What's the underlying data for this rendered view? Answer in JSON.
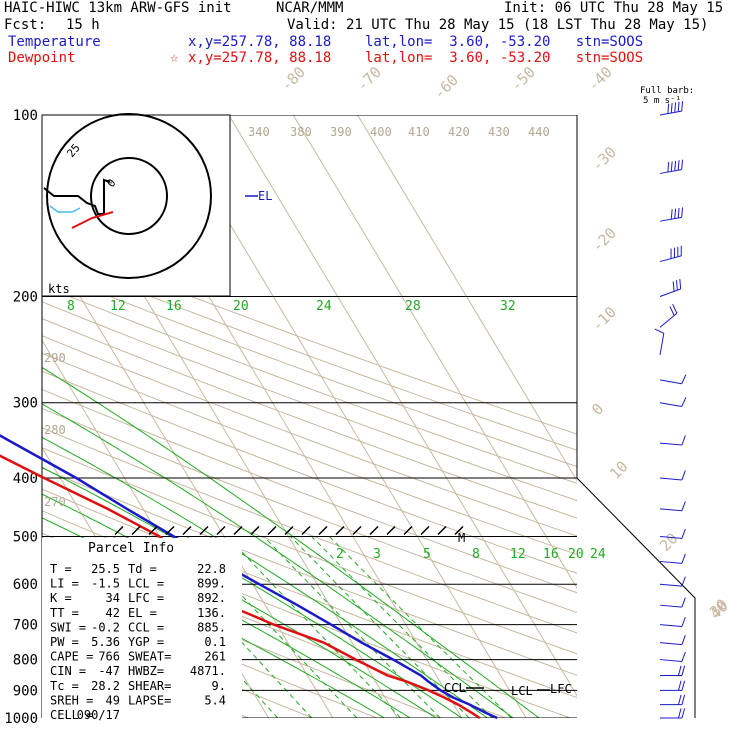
{
  "header": {
    "model": "HAIC-HIWC 13km ARW-GFS init",
    "org": "NCAR/MMM",
    "init": "Init: 06 UTC Thu 28 May 15",
    "fcst_label": "Fcst:",
    "fcst_value": "15 h",
    "valid": "Valid: 21 UTC Thu 28 May 15 (18 LST Thu 28 May 15)",
    "temperature_label": "Temperature",
    "temperature_info": "x,y=257.78, 88.18    lat,lon=  3.60, -53.20   stn=SOOS",
    "dewpoint_label": "Dewpoint",
    "dewpoint_star": "☆",
    "dewpoint_info": "x,y=257.78, 88.18    lat,lon=  3.60, -53.20   stn=SOOS"
  },
  "colors": {
    "temperature": "#1a1acc",
    "dewpoint": "#e01010",
    "isotherm": "#c8b8a0",
    "dry_adiabat": "#c8b8a0",
    "moist_adiabat": "#22aa22",
    "mixing_ratio": "#22aa22"
  },
  "barb_legend": {
    "line1": "Full barb:",
    "line2": "5 m s⁻¹"
  },
  "hodograph": {
    "ring_label": "25",
    "inner_label": "0",
    "units": "kts"
  },
  "parcel_info": {
    "title": "Parcel Info",
    "rows": [
      [
        "T  =",
        "25.5",
        "Td =",
        "22.8"
      ],
      [
        "LI =",
        "-1.5",
        "LCL =",
        "899."
      ],
      [
        "K  =",
        "34",
        "LFC =",
        "892."
      ],
      [
        "TT =",
        "42",
        "EL  =",
        "136."
      ],
      [
        "SWI =",
        "-0.2",
        "CCL =",
        "885."
      ],
      [
        "PW =",
        "5.36",
        "YGP =",
        "0.1"
      ],
      [
        "CAPE =",
        "766",
        "SWEAT=",
        "261"
      ],
      [
        "CIN =",
        "-47",
        "HWBZ=",
        "4871."
      ],
      [
        "Tc =",
        "28.2",
        "SHEAR=",
        "9."
      ],
      [
        "SREH =",
        "49",
        "LAPSE=",
        "5.4"
      ],
      [
        "CELL =",
        "090/17",
        "",
        ""
      ]
    ]
  },
  "chart_data": {
    "type": "skew-t",
    "y_axis": "pressure (hPa)",
    "y_scale": "log",
    "ylim": [
      1000,
      100
    ],
    "pressure_ticks": [
      "100",
      "200",
      "300",
      "400",
      "500",
      "600",
      "700",
      "800",
      "900",
      "1000"
    ],
    "isotherm_labels": [
      "-80",
      "-70",
      "-60",
      "-50",
      "-40",
      "-30",
      "-20",
      "-10",
      "0",
      "10",
      "20",
      "30",
      "40"
    ],
    "dry_adiabat_labels": [
      "340",
      "380",
      "390",
      "400",
      "410",
      "420",
      "430",
      "440",
      "290",
      "280",
      "270"
    ],
    "mixing_ratio_labels_upper": [
      "8",
      "12",
      "16",
      "20",
      "24",
      "28",
      "32"
    ],
    "mixing_ratio_labels_lower": [
      "2",
      "3",
      "5",
      "8",
      "12",
      "16",
      "20",
      "24"
    ],
    "annotations": [
      "EL",
      "M",
      "CCL",
      "LCL",
      "LFC"
    ],
    "series": [
      {
        "name": "Temperature",
        "pressure": [
          1000,
          980,
          950,
          925,
          900,
          870,
          850,
          800,
          750,
          700,
          650,
          600,
          550,
          500,
          450,
          400,
          350,
          300,
          250,
          200,
          175,
          150,
          136,
          125,
          115,
          100
        ],
        "temperature": [
          25.5,
          24.2,
          22.5,
          20.6,
          19.3,
          18.2,
          17.6,
          14.8,
          11.5,
          8.4,
          5.0,
          1.0,
          -3.2,
          -7.8,
          -12.5,
          -17.5,
          -24.0,
          -31.5,
          -40.5,
          -52.0,
          -58.5,
          -66.0,
          -71.5,
          -74.5,
          -74.0,
          -73.5
        ]
      },
      {
        "name": "Dewpoint",
        "pressure": [
          1000,
          980,
          950,
          925,
          900,
          870,
          850,
          800,
          750,
          700,
          670,
          650,
          600,
          550,
          500,
          450,
          400,
          350,
          300,
          250,
          210,
          200,
          175,
          150,
          125,
          100
        ],
        "temperature": [
          22.8,
          22.0,
          20.7,
          19.2,
          17.4,
          14.8,
          12.4,
          9.0,
          5.6,
          -0.5,
          -3.6,
          -6.0,
          -7.0,
          -8.0,
          -10.0,
          -15.5,
          -22.5,
          -30.0,
          -37.5,
          -46.0,
          -58.0,
          -62.0,
          -67.0,
          -74.5,
          -82.5,
          -86.0
        ]
      }
    ],
    "wind_barbs": [
      {
        "p": 100,
        "speed_ms": 25,
        "dir": 80
      },
      {
        "p": 125,
        "speed_ms": 25,
        "dir": 80
      },
      {
        "p": 150,
        "speed_ms": 22,
        "dir": 80
      },
      {
        "p": 175,
        "speed_ms": 20,
        "dir": 75
      },
      {
        "p": 200,
        "speed_ms": 15,
        "dir": 70
      },
      {
        "p": 225,
        "speed_ms": 10,
        "dir": 50
      },
      {
        "p": 250,
        "speed_ms": 5,
        "dir": 10
      },
      {
        "p": 275,
        "speed_ms": 5,
        "dir": 100
      },
      {
        "p": 300,
        "speed_ms": 5,
        "dir": 100
      },
      {
        "p": 350,
        "speed_ms": 7,
        "dir": 95
      },
      {
        "p": 400,
        "speed_ms": 7,
        "dir": 95
      },
      {
        "p": 450,
        "speed_ms": 7,
        "dir": 95
      },
      {
        "p": 500,
        "speed_ms": 7,
        "dir": 95
      },
      {
        "p": 550,
        "speed_ms": 7,
        "dir": 95
      },
      {
        "p": 600,
        "speed_ms": 7,
        "dir": 95
      },
      {
        "p": 650,
        "speed_ms": 7,
        "dir": 95
      },
      {
        "p": 700,
        "speed_ms": 8,
        "dir": 95
      },
      {
        "p": 750,
        "speed_ms": 8,
        "dir": 95
      },
      {
        "p": 800,
        "speed_ms": 8,
        "dir": 95
      },
      {
        "p": 850,
        "speed_ms": 10,
        "dir": 90
      },
      {
        "p": 900,
        "speed_ms": 10,
        "dir": 90
      },
      {
        "p": 950,
        "speed_ms": 10,
        "dir": 90
      },
      {
        "p": 1000,
        "speed_ms": 10,
        "dir": 90
      }
    ]
  }
}
